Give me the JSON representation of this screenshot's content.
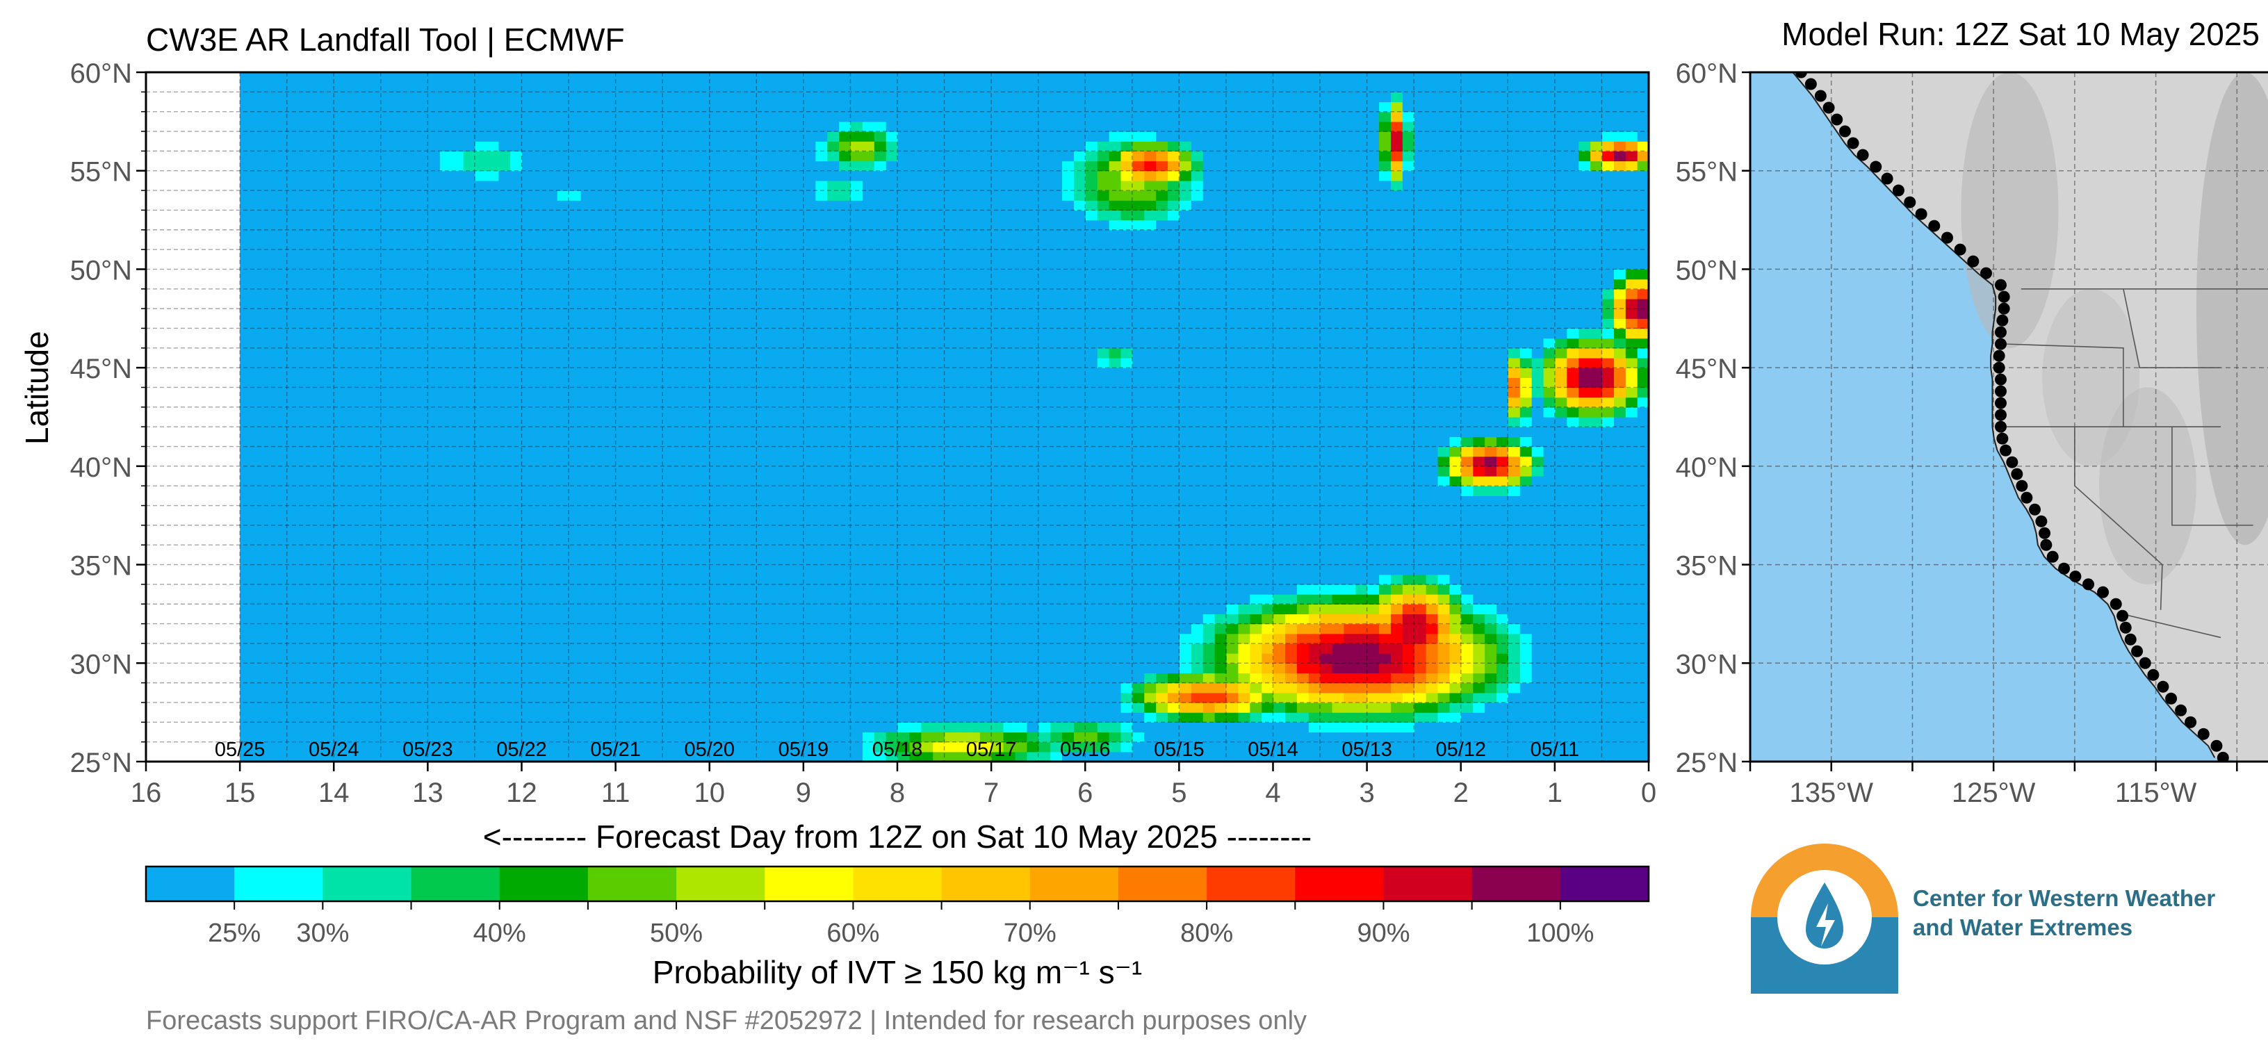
{
  "header": {
    "title": "CW3E AR Landfall Tool | ECMWF",
    "model_run": "Model Run: 12Z Sat 10 May 2025"
  },
  "footer": {
    "note": "Forecasts support FIRO/CA-AR Program and NSF #2052972 | Intended for research purposes only"
  },
  "logo": {
    "org_line1": "Center for Western Weather",
    "org_line2": "and Water Extremes",
    "icon": "water-drop-icon"
  },
  "chart_data": [
    {
      "type": "heatmap",
      "title": "CW3E AR Landfall Tool | ECMWF",
      "xlabel": "<-------- Forecast Day from 12Z on Sat 10 May 2025 --------",
      "ylabel": "Latitude",
      "x_direction": "reversed",
      "xlim": [
        16,
        0
      ],
      "ylim": [
        25,
        60
      ],
      "x_ticks": [
        16,
        15,
        14,
        13,
        12,
        11,
        10,
        9,
        8,
        7,
        6,
        5,
        4,
        3,
        2,
        1,
        0
      ],
      "y_ticks": [
        "25°N",
        "30°N",
        "35°N",
        "40°N",
        "45°N",
        "50°N",
        "55°N",
        "60°N"
      ],
      "y_tick_values": [
        25,
        30,
        35,
        40,
        45,
        50,
        55,
        60
      ],
      "date_labels": [
        {
          "day": 15,
          "label": "05/25"
        },
        {
          "day": 14,
          "label": "05/24"
        },
        {
          "day": 13,
          "label": "05/23"
        },
        {
          "day": 12,
          "label": "05/22"
        },
        {
          "day": 11,
          "label": "05/21"
        },
        {
          "day": 10,
          "label": "05/20"
        },
        {
          "day": 9,
          "label": "05/19"
        },
        {
          "day": 8,
          "label": "05/18"
        },
        {
          "day": 7,
          "label": "05/17"
        },
        {
          "day": 6,
          "label": "05/16"
        },
        {
          "day": 5,
          "label": "05/15"
        },
        {
          "day": 4,
          "label": "05/14"
        },
        {
          "day": 3,
          "label": "05/13"
        },
        {
          "day": 2,
          "label": "05/12"
        },
        {
          "day": 1,
          "label": "05/11"
        }
      ],
      "data_extent_days": [
        15,
        0
      ],
      "grid": true,
      "background_probability": 20,
      "features": [
        {
          "day": 3.1,
          "lat": 30.3,
          "peak": 100,
          "day_radius": 1.7,
          "lat_radius": 3.3
        },
        {
          "day": 2.5,
          "lat": 31.8,
          "peak": 96,
          "day_radius": 0.6,
          "lat_radius": 2.6
        },
        {
          "day": 4.7,
          "lat": 28.3,
          "peak": 84,
          "day_radius": 0.9,
          "lat_radius": 1.4
        },
        {
          "day": 7.3,
          "lat": 25.8,
          "peak": 58,
          "day_radius": 1.3,
          "lat_radius": 1.4
        },
        {
          "day": 6.0,
          "lat": 26.2,
          "peak": 46,
          "day_radius": 0.8,
          "lat_radius": 1.2
        },
        {
          "day": 5.3,
          "lat": 55.3,
          "peak": 88,
          "day_radius": 0.55,
          "lat_radius": 1.3
        },
        {
          "day": 5.5,
          "lat": 54.5,
          "peak": 52,
          "day_radius": 0.9,
          "lat_radius": 3.0
        },
        {
          "day": 8.4,
          "lat": 56.2,
          "peak": 52,
          "day_radius": 0.55,
          "lat_radius": 1.5
        },
        {
          "day": 8.6,
          "lat": 54.0,
          "peak": 35,
          "day_radius": 0.5,
          "lat_radius": 1.0
        },
        {
          "day": 12.4,
          "lat": 55.5,
          "peak": 34,
          "day_radius": 0.9,
          "lat_radius": 1.5
        },
        {
          "day": 11.5,
          "lat": 53.7,
          "peak": 26,
          "day_radius": 0.6,
          "lat_radius": 0.8
        },
        {
          "day": 5.7,
          "lat": 45.6,
          "peak": 38,
          "day_radius": 0.35,
          "lat_radius": 1.0
        },
        {
          "day": 1.7,
          "lat": 40.1,
          "peak": 97,
          "day_radius": 0.55,
          "lat_radius": 1.4
        },
        {
          "day": 1.4,
          "lat": 44.0,
          "peak": 85,
          "day_radius": 0.15,
          "lat_radius": 2.0
        },
        {
          "day": 0.6,
          "lat": 44.5,
          "peak": 100,
          "day_radius": 0.6,
          "lat_radius": 2.2
        },
        {
          "day": 0.1,
          "lat": 48.0,
          "peak": 100,
          "day_radius": 0.35,
          "lat_radius": 2.0
        },
        {
          "day": 0.3,
          "lat": 55.8,
          "peak": 100,
          "day_radius": 0.45,
          "lat_radius": 0.9
        },
        {
          "day": 2.7,
          "lat": 56.5,
          "peak": 92,
          "day_radius": 0.15,
          "lat_radius": 2.4
        }
      ]
    },
    {
      "type": "colorbar",
      "label": "Probability of IVT ≥ 150 kg m⁻¹ s⁻¹",
      "bins": [
        20,
        25,
        30,
        35,
        40,
        45,
        50,
        55,
        60,
        65,
        70,
        75,
        80,
        85,
        90,
        95,
        100
      ],
      "colors": [
        "#0aaaf0",
        "#00ffff",
        "#00e3a8",
        "#00c94d",
        "#00aa00",
        "#5acd00",
        "#aee600",
        "#ffff00",
        "#ffe100",
        "#ffc600",
        "#ffa500",
        "#ff7b00",
        "#ff3c00",
        "#ff0000",
        "#d2001e",
        "#8c0050",
        "#5a0082"
      ],
      "tick_labels": [
        "25%",
        "30%",
        "40%",
        "50%",
        "60%",
        "70%",
        "80%",
        "90%",
        "100%"
      ],
      "tick_values": [
        25,
        30,
        40,
        50,
        60,
        70,
        80,
        90,
        100
      ]
    },
    {
      "type": "map",
      "lon_ticks": [
        "135°W",
        "125°W",
        "115°W"
      ],
      "lon_tick_values": [
        -135,
        -125,
        -115
      ],
      "lat_ticks": [
        "25°N",
        "30°N",
        "35°N",
        "40°N",
        "45°N",
        "50°N",
        "55°N",
        "60°N"
      ],
      "lat_tick_values": [
        25,
        30,
        35,
        40,
        45,
        50,
        55,
        60
      ],
      "lon_range": [
        -140,
        -108
      ],
      "lat_range": [
        25,
        60
      ],
      "ocean_color": "#8ecbf2",
      "landfall_points": [
        [
          -137.2,
          60.0
        ],
        [
          -136.6,
          59.4
        ],
        [
          -136.0,
          58.8
        ],
        [
          -135.5,
          58.2
        ],
        [
          -135.0,
          57.6
        ],
        [
          -134.5,
          57.0
        ],
        [
          -134.0,
          56.4
        ],
        [
          -133.4,
          55.8
        ],
        [
          -132.6,
          55.2
        ],
        [
          -131.9,
          54.6
        ],
        [
          -131.2,
          54.0
        ],
        [
          -130.5,
          53.4
        ],
        [
          -129.8,
          52.8
        ],
        [
          -129.0,
          52.2
        ],
        [
          -128.2,
          51.6
        ],
        [
          -127.4,
          51.0
        ],
        [
          -126.6,
          50.4
        ],
        [
          -125.8,
          49.8
        ],
        [
          -124.9,
          49.2
        ],
        [
          -124.7,
          48.6
        ],
        [
          -124.7,
          48.0
        ],
        [
          -124.8,
          47.4
        ],
        [
          -124.9,
          46.8
        ],
        [
          -124.9,
          46.2
        ],
        [
          -125.0,
          45.6
        ],
        [
          -125.0,
          45.0
        ],
        [
          -124.9,
          44.4
        ],
        [
          -124.9,
          43.8
        ],
        [
          -124.9,
          43.2
        ],
        [
          -124.9,
          42.6
        ],
        [
          -124.9,
          42.0
        ],
        [
          -124.8,
          41.4
        ],
        [
          -124.6,
          40.8
        ],
        [
          -124.2,
          40.2
        ],
        [
          -123.9,
          39.6
        ],
        [
          -123.6,
          39.0
        ],
        [
          -123.3,
          38.4
        ],
        [
          -122.8,
          37.8
        ],
        [
          -122.4,
          37.2
        ],
        [
          -122.2,
          36.6
        ],
        [
          -122.1,
          36.0
        ],
        [
          -121.7,
          35.4
        ],
        [
          -121.0,
          34.8
        ],
        [
          -120.3,
          34.4
        ],
        [
          -119.5,
          34.0
        ],
        [
          -118.6,
          33.6
        ],
        [
          -117.8,
          33.0
        ],
        [
          -117.4,
          32.4
        ],
        [
          -117.2,
          31.8
        ],
        [
          -116.9,
          31.2
        ],
        [
          -116.5,
          30.6
        ],
        [
          -116.0,
          30.0
        ],
        [
          -115.5,
          29.4
        ],
        [
          -114.9,
          28.8
        ],
        [
          -114.4,
          28.2
        ],
        [
          -113.8,
          27.6
        ],
        [
          -113.2,
          27.0
        ],
        [
          -112.4,
          26.4
        ],
        [
          -111.6,
          25.8
        ],
        [
          -111.2,
          25.2
        ]
      ]
    }
  ]
}
